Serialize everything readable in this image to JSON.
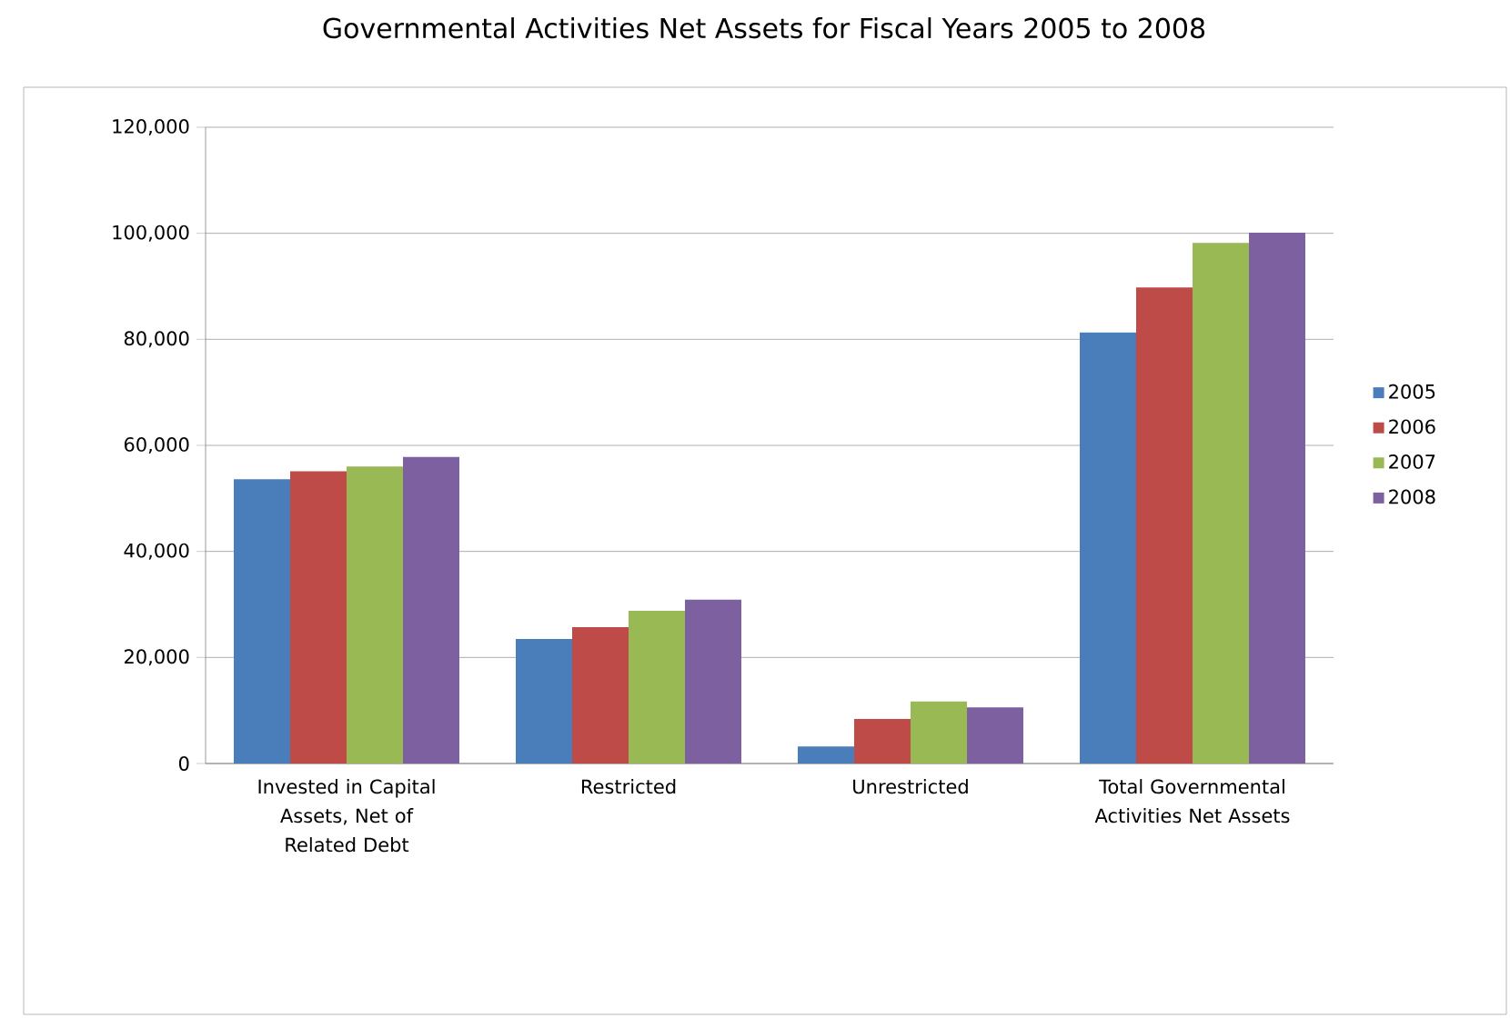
{
  "chart_data": {
    "type": "bar",
    "title": "Governmental Activities Net Assets for Fiscal Years 2005 to 2008",
    "categories": [
      "Invested in Capital Assets, Net of Related Debt",
      "Restricted",
      "Unrestricted",
      "Total Governmental Activities Net Assets"
    ],
    "series": [
      {
        "name": "2005",
        "color": "#4a7ebb",
        "values": [
          53600,
          23500,
          3200,
          81300
        ]
      },
      {
        "name": "2006",
        "color": "#be4b48",
        "values": [
          55100,
          25700,
          8400,
          89800
        ]
      },
      {
        "name": "2007",
        "color": "#98b954",
        "values": [
          56000,
          28800,
          11700,
          98200
        ]
      },
      {
        "name": "2008",
        "color": "#7d60a0",
        "values": [
          57800,
          30900,
          10600,
          100100
        ]
      }
    ],
    "ylim": [
      0,
      120000
    ],
    "yticks": [
      {
        "value": 0,
        "label": "0"
      },
      {
        "value": 20000,
        "label": "20,000"
      },
      {
        "value": 40000,
        "label": "40,000"
      },
      {
        "value": 60000,
        "label": "60,000"
      },
      {
        "value": 80000,
        "label": "80,000"
      },
      {
        "value": 100000,
        "label": "100,000"
      },
      {
        "value": 120000,
        "label": "120,000"
      }
    ],
    "grid": "y",
    "legend": "right"
  }
}
